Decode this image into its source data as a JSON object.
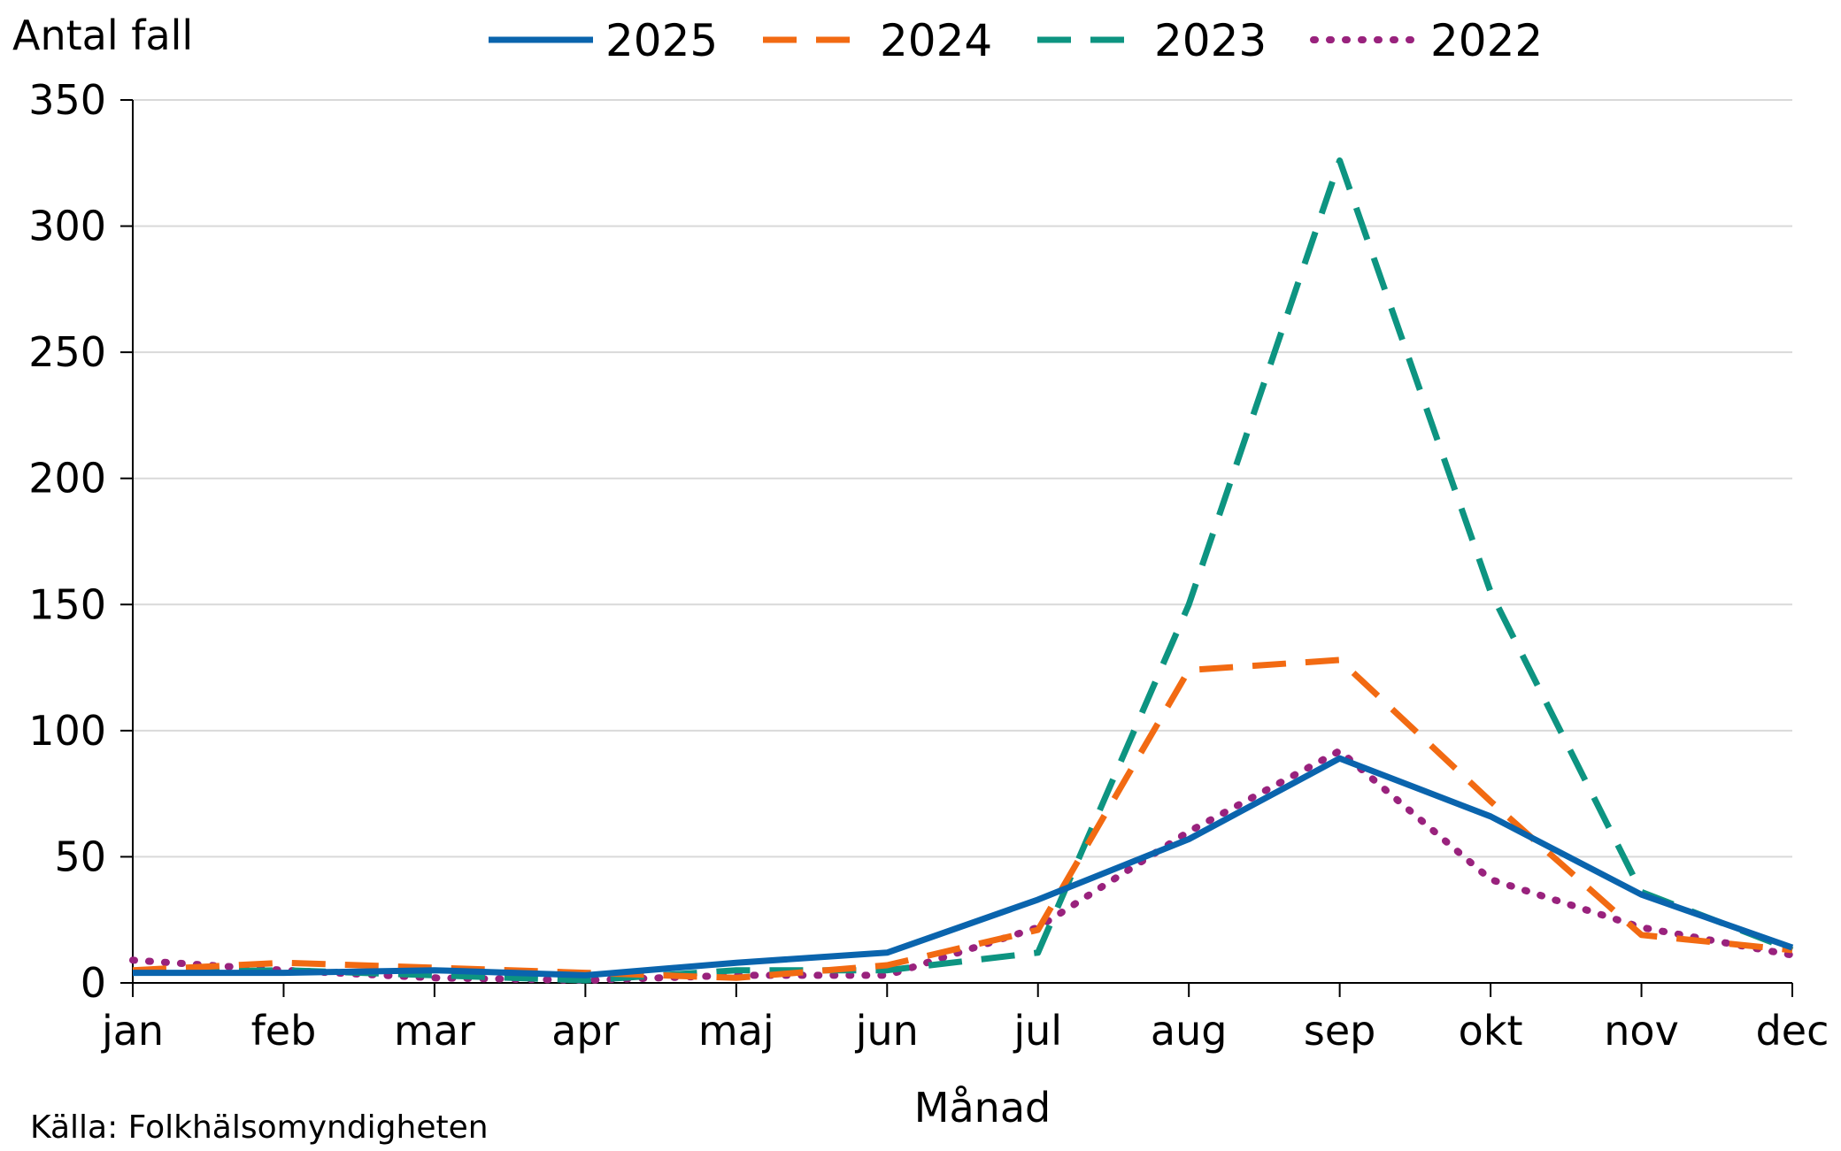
{
  "chart_data": {
    "type": "line",
    "ylabel": "Antal fall",
    "xlabel": "Månad",
    "source": "Källa: Folkhälsomyndigheten",
    "categories": [
      "jan",
      "feb",
      "mar",
      "apr",
      "maj",
      "jun",
      "jul",
      "aug",
      "sep",
      "okt",
      "nov",
      "dec"
    ],
    "ylim": [
      0,
      350
    ],
    "yticks": [
      0,
      50,
      100,
      150,
      200,
      250,
      300,
      350
    ],
    "grid": true,
    "legend": "top",
    "series": [
      {
        "name": "2025",
        "color": "#0a64ad",
        "style": "solid",
        "values": [
          4,
          4,
          5,
          3,
          8,
          12,
          33,
          57,
          89,
          66,
          35,
          14
        ]
      },
      {
        "name": "2024",
        "color": "#f26a12",
        "style": "dashed",
        "values": [
          5,
          8,
          6,
          4,
          2,
          7,
          21,
          124,
          128,
          72,
          19,
          13
        ]
      },
      {
        "name": "2023",
        "color": "#0d9481",
        "style": "dashed",
        "values": [
          4,
          5,
          3,
          1,
          5,
          5,
          12,
          150,
          326,
          155,
          36,
          13
        ]
      },
      {
        "name": "2022",
        "color": "#99227d",
        "style": "dotted",
        "values": [
          9,
          5,
          2,
          1,
          3,
          3,
          22,
          60,
          92,
          41,
          22,
          11
        ]
      }
    ]
  }
}
